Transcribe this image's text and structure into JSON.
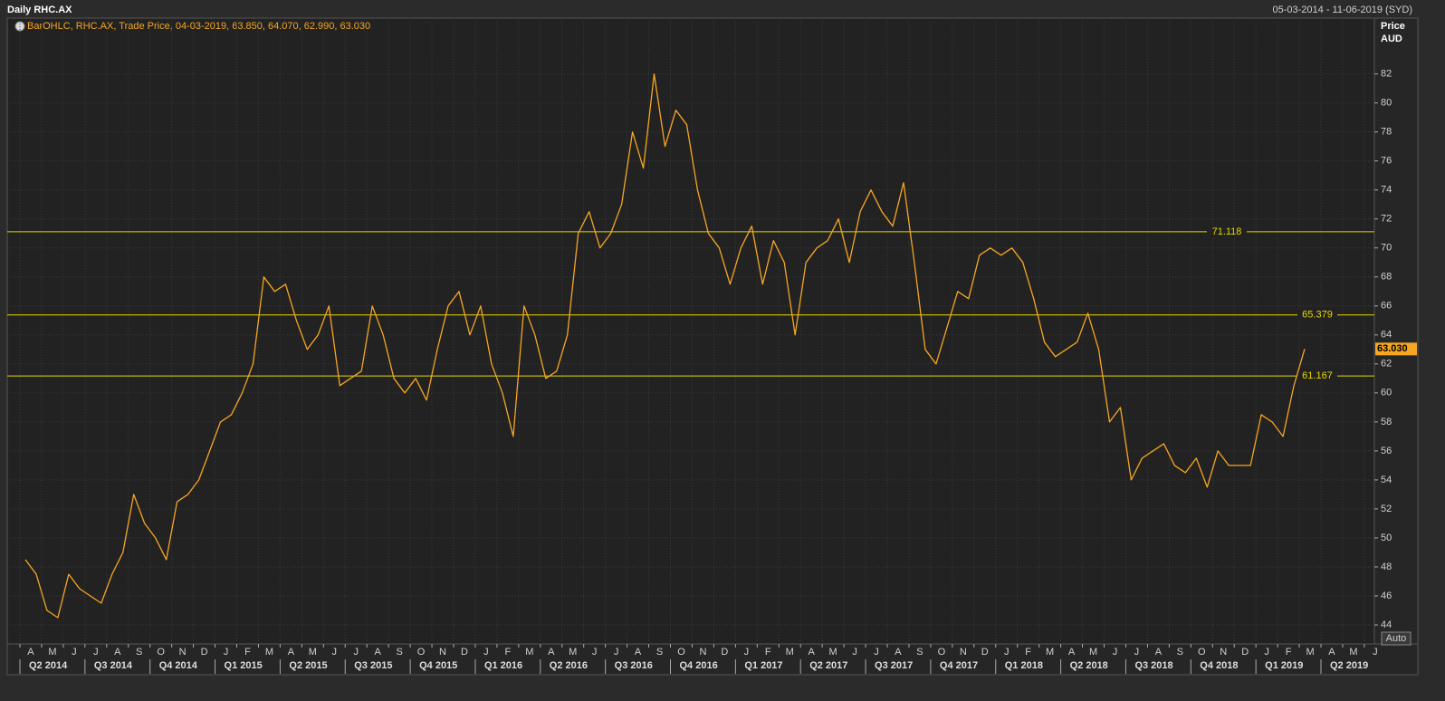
{
  "title": "Daily RHC.AX",
  "date_range": "05-03-2014 - 11-06-2019 (SYD)",
  "chart_data": {
    "type": "line",
    "legend": "BarOHLC, RHC.AX, Trade Price, 04-03-2019, 63.850, 64.070, 62.990, 63.030",
    "y_axis_title": "Price",
    "y_axis_unit": "AUD",
    "categories": [
      "A",
      null,
      "M",
      null,
      "J",
      null,
      "J",
      null,
      "A",
      null,
      "S",
      null,
      "O",
      null,
      "N",
      null,
      "D",
      null,
      "J",
      null,
      "F",
      null,
      "M",
      null,
      "A",
      null,
      "M",
      null,
      "J",
      null,
      "J",
      null,
      "A",
      null,
      "S",
      null,
      "O",
      null,
      "N",
      null,
      "D",
      null,
      "J",
      null,
      "F",
      null,
      "M",
      null,
      "A",
      null,
      "M",
      null,
      "J",
      null,
      "J",
      null,
      "A",
      null,
      "S",
      null,
      "O",
      null,
      "N",
      null,
      "D",
      null,
      "J",
      null,
      "F",
      null,
      "M",
      null,
      "A",
      null,
      "M",
      null,
      "J",
      null,
      "J",
      null,
      "A",
      null,
      "S",
      null,
      "O",
      null,
      "N",
      null,
      "D",
      null,
      "J",
      null,
      "F",
      null,
      "M",
      null,
      "A",
      null,
      "M",
      null,
      "J",
      null,
      "J",
      null,
      "A",
      null,
      "S",
      null,
      "O",
      null,
      "N",
      null,
      "D",
      null,
      "J",
      null,
      "F",
      null,
      "M",
      null,
      "A",
      null,
      "M",
      null,
      "J",
      null
    ],
    "quarters": [
      "Q2 2014",
      "Q3 2014",
      "Q4 2014",
      "Q1 2015",
      "Q2 2015",
      "Q3 2015",
      "Q4 2015",
      "Q1 2016",
      "Q2 2016",
      "Q3 2016",
      "Q4 2016",
      "Q1 2017",
      "Q2 2017",
      "Q3 2017",
      "Q4 2017",
      "Q1 2018",
      "Q2 2018",
      "Q3 2018",
      "Q4 2018",
      "Q1 2019",
      "Q2 2019"
    ],
    "series": [
      {
        "color": "#f5a623",
        "values": [
          48.5,
          47.5,
          45,
          44.5,
          47.5,
          46.5,
          46,
          45.5,
          47.5,
          49,
          53,
          51,
          50,
          48.5,
          52.5,
          53,
          54,
          56,
          58,
          58.5,
          60,
          62,
          68,
          67,
          67.5,
          65,
          63,
          64,
          66,
          60.5,
          61,
          61.5,
          66,
          64,
          61,
          60,
          61,
          59.5,
          63,
          66,
          67,
          64,
          66,
          62,
          60,
          57,
          66,
          64,
          61,
          61.5,
          64,
          71,
          72.5,
          70,
          71,
          73,
          78,
          75.5,
          82,
          77,
          79.5,
          78.5,
          74,
          71,
          70,
          67.5,
          70,
          71.5,
          67.5,
          70.5,
          69,
          64,
          69,
          70,
          70.5,
          72,
          69,
          72.5,
          74,
          72.5,
          71.5,
          74.5,
          69,
          63,
          62,
          64.5,
          67,
          66.5,
          69.5,
          70,
          69.5,
          70,
          69,
          66.5,
          63.5,
          62.5,
          63,
          63.5,
          65.5,
          63,
          58,
          59,
          54,
          55.5,
          56,
          56.5,
          55,
          54.5,
          55.5,
          53.5,
          56,
          55,
          55,
          55,
          58.5,
          58,
          57,
          60.5,
          63.03,
          null,
          null,
          null,
          null,
          null,
          null,
          null
        ]
      }
    ],
    "levels": [
      71.118,
      65.379,
      61.167
    ],
    "level_color": "#e8d800",
    "last_price": {
      "value": 63.03,
      "label": "63.030"
    },
    "ylim": [
      42.75,
      86.6
    ],
    "yticks": [
      44,
      46,
      48,
      50,
      52,
      54,
      56,
      58,
      60,
      62,
      64,
      66,
      68,
      70,
      72,
      74,
      76,
      78,
      80,
      82
    ],
    "grid": true,
    "button": "Auto"
  }
}
